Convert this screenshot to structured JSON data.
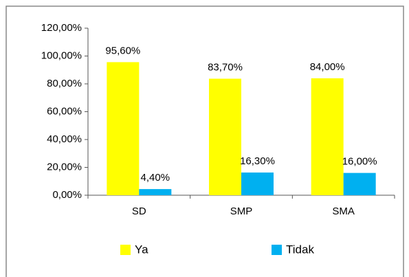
{
  "chart_data": {
    "type": "bar",
    "categories": [
      "SD",
      "SMP",
      "SMA"
    ],
    "series": [
      {
        "name": "Ya",
        "color": "#ffff00",
        "values": [
          95.6,
          83.7,
          84.0
        ],
        "value_labels": [
          "95,60%",
          "83,70%",
          "84,00%"
        ]
      },
      {
        "name": "Tidak",
        "color": "#00b0f0",
        "values": [
          4.4,
          16.3,
          16.0
        ],
        "value_labels": [
          "4,40%",
          "16,30%",
          "16,00%"
        ]
      }
    ],
    "ylim": [
      0,
      120
    ],
    "yticks": [
      {
        "value": 0,
        "label": "0,00%"
      },
      {
        "value": 20,
        "label": "20,00%"
      },
      {
        "value": 40,
        "label": "40,00%"
      },
      {
        "value": 60,
        "label": "60,00%"
      },
      {
        "value": 80,
        "label": "80,00%"
      },
      {
        "value": 100,
        "label": "100,00%"
      },
      {
        "value": 120,
        "label": "120,00%"
      }
    ],
    "legend": "bottom"
  }
}
